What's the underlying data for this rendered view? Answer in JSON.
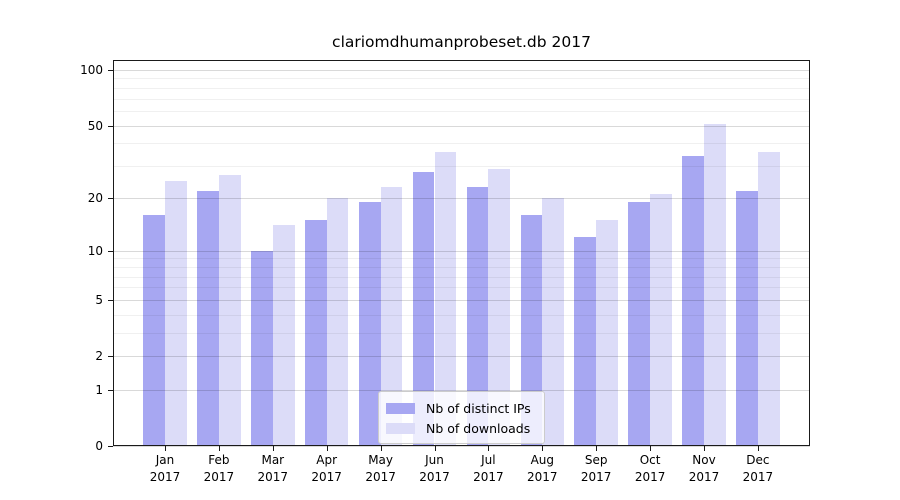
{
  "figure_title": "clariomdhumanprobeset.db 2017",
  "chart_data": {
    "type": "bar",
    "title": "clariomdhumanprobeset.db 2017",
    "categories": [
      "Jan 2017",
      "Feb 2017",
      "Mar 2017",
      "Apr 2017",
      "May 2017",
      "Jun 2017",
      "Jul 2017",
      "Aug 2017",
      "Sep 2017",
      "Oct 2017",
      "Nov 2017",
      "Dec 2017"
    ],
    "series": [
      {
        "name": "Nb of distinct IPs",
        "color": "#a7a7f2",
        "values": [
          16,
          22,
          10,
          15,
          19,
          28,
          23,
          16,
          12,
          19,
          34,
          22
        ]
      },
      {
        "name": "Nb of downloads",
        "color": "#dcdcf8",
        "values": [
          25,
          27,
          14,
          20,
          23,
          36,
          29,
          20,
          15,
          21,
          51,
          36
        ]
      }
    ],
    "xlabel": "",
    "ylabel": "",
    "scale": "log1p",
    "ylim": [
      0,
      113
    ],
    "y_major_ticks": [
      0,
      1,
      2,
      5,
      10,
      20,
      50,
      100
    ],
    "y_minor_ticks": [
      3,
      4,
      6,
      7,
      8,
      9,
      30,
      40,
      60,
      70,
      80,
      90
    ],
    "grid": true,
    "grid_over_bars": true,
    "legend_position": "lower center"
  },
  "colors": {
    "background": "#ffffff",
    "spine": "#1a1a1a",
    "major_grid": "rgba(0,0,0,0.15)",
    "minor_grid": "rgba(0,0,0,0.06)",
    "text": "#000000"
  }
}
